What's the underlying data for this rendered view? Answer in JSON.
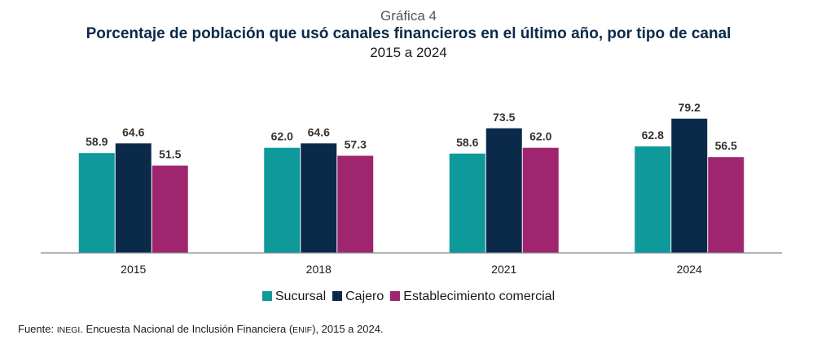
{
  "header": {
    "supertitle": "Gráfica 4",
    "title": "Porcentaje de población que usó canales financieros en el último año, por tipo de canal",
    "subtitle": "2015 a 2024"
  },
  "chart_data": {
    "type": "bar",
    "categories": [
      "2015",
      "2018",
      "2021",
      "2024"
    ],
    "series": [
      {
        "name": "Sucursal",
        "values": [
          58.9,
          62.0,
          58.6,
          62.8
        ],
        "color": "#0e9a9a"
      },
      {
        "name": "Cajero",
        "values": [
          64.6,
          64.6,
          73.5,
          79.2
        ],
        "color": "#0b2a4a"
      },
      {
        "name": "Establecimiento comercial",
        "values": [
          51.5,
          57.3,
          62.0,
          56.5
        ],
        "color": "#a0256f"
      }
    ],
    "ylim": [
      0,
      100
    ],
    "grid": false,
    "legend_position": "bottom"
  },
  "source": {
    "prefix": "Fuente: ",
    "org": "INEGI",
    "text": ". Encuesta Nacional de Inclusión Financiera (",
    "abbr": "ENIF",
    "suffix": "), 2015 a 2024."
  }
}
